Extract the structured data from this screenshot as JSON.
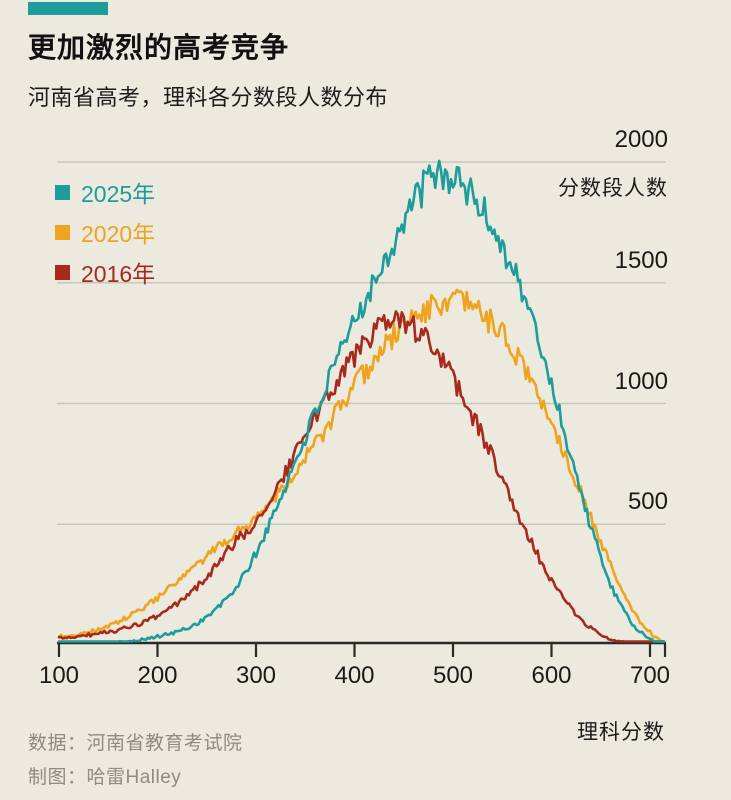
{
  "header": {
    "title": "更加激烈的高考竞争",
    "subtitle": "河南省高考，理科各分数段人数分布"
  },
  "axis": {
    "y_axis_label": "分数段人数",
    "x_axis_label": "理科分数"
  },
  "footer": {
    "source": "数据：河南省教育考试院",
    "credit": "制图：哈雷Halley"
  },
  "colors": {
    "background": "#ECE9DF",
    "accent_tag": "#1E9C9B",
    "gridline": "#C8C5BA",
    "axis_line": "#2A2A28",
    "footer_text": "#8E8C81",
    "series_2025": "#1E9C9B",
    "series_2020": "#EEA41F",
    "series_2016": "#A72A1D"
  },
  "chart_data": {
    "type": "line",
    "title": "更加激烈的高考竞争",
    "subtitle": "河南省高考，理科各分数段人数分布",
    "xlabel": "理科分数",
    "ylabel": "分数段人数",
    "xlim": [
      100,
      720
    ],
    "ylim": [
      0,
      2000
    ],
    "x_ticks": [
      100,
      200,
      300,
      400,
      500,
      600,
      700
    ],
    "y_ticks": [
      500,
      1000,
      1500,
      2000
    ],
    "grid": "horizontal",
    "legend_position": "top-left",
    "line_style": "noisy",
    "x": [
      100,
      120,
      140,
      160,
      180,
      200,
      220,
      240,
      260,
      280,
      300,
      320,
      340,
      360,
      380,
      400,
      420,
      440,
      460,
      480,
      500,
      520,
      540,
      560,
      580,
      600,
      620,
      640,
      660,
      680,
      700,
      715
    ],
    "series": [
      {
        "name": "2025年",
        "color": "#1E9C9B",
        "values": [
          4,
          6,
          9,
          13,
          20,
          35,
          55,
          90,
          150,
          240,
          380,
          560,
          760,
          960,
          1150,
          1340,
          1510,
          1670,
          1830,
          1940,
          1930,
          1860,
          1730,
          1570,
          1350,
          1080,
          780,
          490,
          250,
          100,
          25,
          5
        ]
      },
      {
        "name": "2020年",
        "color": "#EEA41F",
        "values": [
          35,
          45,
          65,
          95,
          140,
          195,
          260,
          330,
          400,
          465,
          530,
          620,
          720,
          830,
          950,
          1070,
          1180,
          1280,
          1360,
          1400,
          1420,
          1400,
          1330,
          1230,
          1090,
          920,
          730,
          530,
          330,
          160,
          55,
          10
        ]
      },
      {
        "name": "2016年",
        "color": "#A72A1D",
        "values": [
          28,
          36,
          48,
          62,
          85,
          120,
          170,
          240,
          330,
          430,
          510,
          640,
          790,
          940,
          1080,
          1200,
          1290,
          1330,
          1310,
          1230,
          1100,
          950,
          780,
          600,
          420,
          270,
          150,
          70,
          25,
          8,
          2,
          0
        ]
      }
    ]
  }
}
